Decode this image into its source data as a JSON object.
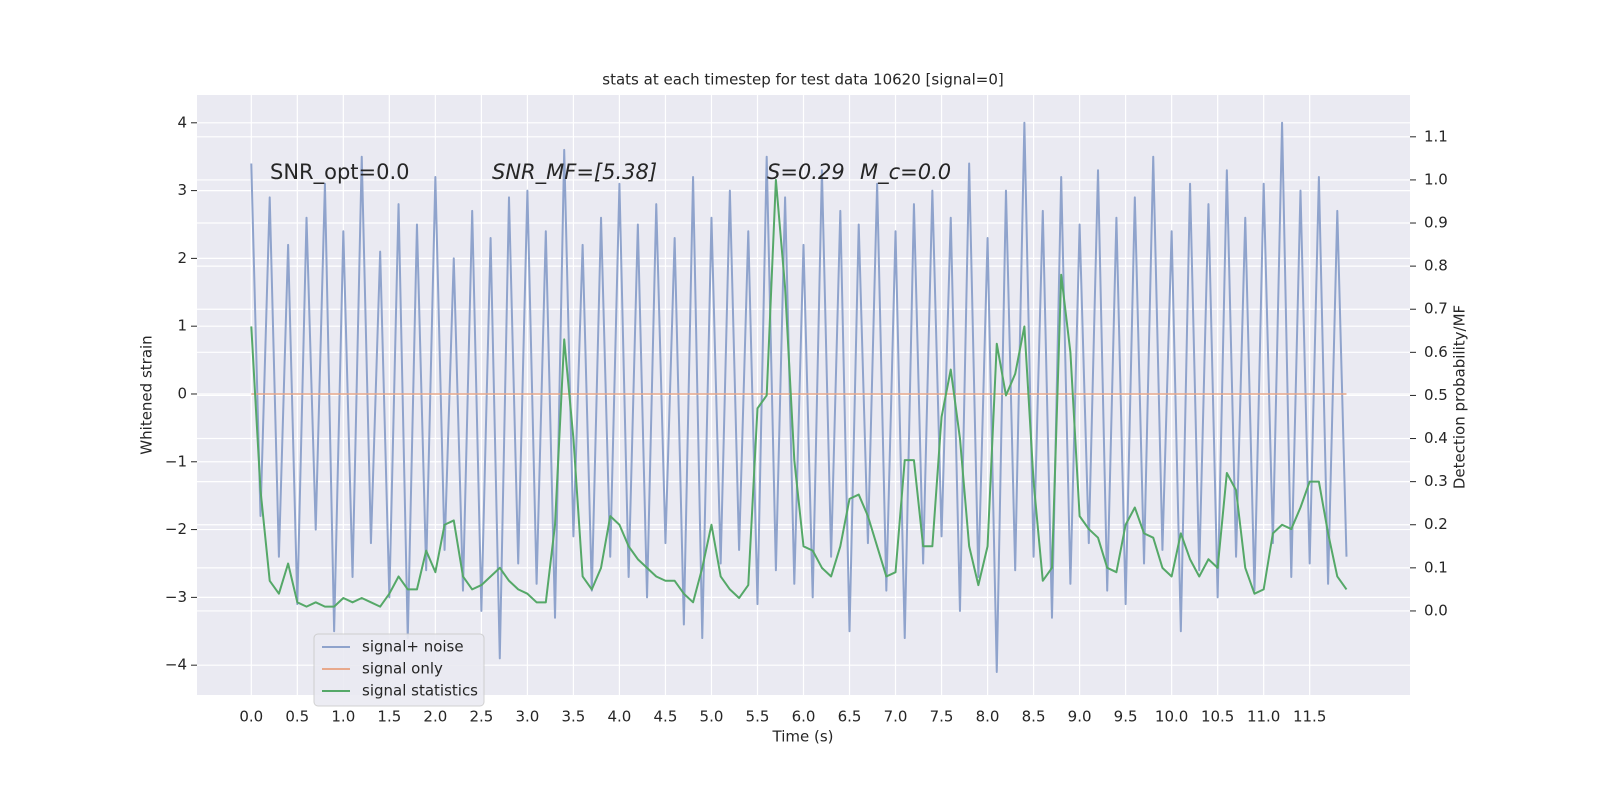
{
  "chart_data": {
    "type": "line",
    "title": "stats at each timestep for test data 10620 [signal=0]",
    "xlabel": "Time (s)",
    "ylabel": "Whitened strain",
    "y2label": "Detection probability/MF",
    "annotations": [
      "SNR_opt=0.0",
      "SNR_MF=[5.38]",
      "S=0.29",
      "M_c=0.0"
    ],
    "background": "#eaeaf2",
    "grid": true,
    "legend": "lower left",
    "xlim": [
      -0.59,
      12.59
    ],
    "ylim": [
      -4.44,
      4.41
    ],
    "y2lim": [
      -0.195,
      1.197
    ],
    "xticks": [
      {
        "value": 0,
        "label": "0.0"
      },
      0.5,
      {
        "value": 1,
        "label": "1.0"
      },
      1.5,
      {
        "value": 2,
        "label": "2.0"
      },
      2.5,
      {
        "value": 3,
        "label": "3.0"
      },
      3.5,
      {
        "value": 4,
        "label": "4.0"
      },
      4.5,
      {
        "value": 5,
        "label": "5.0"
      },
      5.5,
      {
        "value": 6,
        "label": "6.0"
      },
      6.5,
      {
        "value": 7,
        "label": "7.0"
      },
      7.5,
      {
        "value": 8,
        "label": "8.0"
      },
      8.5,
      {
        "value": 9,
        "label": "9.0"
      },
      9.5,
      {
        "value": 10,
        "label": "10.0"
      },
      10.5,
      {
        "value": 11,
        "label": "11.0"
      },
      11.5
    ],
    "yticks": [
      {
        "value": -4,
        "label": "−4"
      },
      {
        "value": -3,
        "label": "−3"
      },
      {
        "value": -2,
        "label": "−2"
      },
      {
        "value": -1,
        "label": "−1"
      },
      0,
      1,
      2,
      3,
      4
    ],
    "y2ticks": [
      {
        "value": 0,
        "label": "0.0"
      },
      0.1,
      0.2,
      0.3,
      0.4,
      0.5,
      0.6,
      0.7,
      0.8,
      0.9,
      {
        "value": 1,
        "label": "1.0"
      },
      1.1
    ],
    "x": [
      0,
      0.1,
      0.2,
      0.3,
      0.4,
      0.5,
      0.6,
      0.7,
      0.8,
      0.9,
      1,
      1.1,
      1.2,
      1.3,
      1.4,
      1.5,
      1.6,
      1.7,
      1.8,
      1.9,
      2,
      2.1,
      2.2,
      2.3,
      2.4,
      2.5,
      2.6,
      2.7,
      2.8,
      2.9,
      3,
      3.1,
      3.2,
      3.3,
      3.4,
      3.5,
      3.6,
      3.7,
      3.8,
      3.9,
      4,
      4.1,
      4.2,
      4.3,
      4.4,
      4.5,
      4.6,
      4.7,
      4.8,
      4.9,
      5,
      5.1,
      5.2,
      5.3,
      5.4,
      5.5,
      5.6,
      5.7,
      5.8,
      5.9,
      6,
      6.1,
      6.2,
      6.3,
      6.4,
      6.5,
      6.6,
      6.7,
      6.8,
      6.9,
      7,
      7.1,
      7.2,
      7.3,
      7.4,
      7.5,
      7.6,
      7.7,
      7.8,
      7.9,
      8,
      8.1,
      8.2,
      8.3,
      8.4,
      8.5,
      8.6,
      8.7,
      8.8,
      8.9,
      9,
      9.1,
      9.2,
      9.3,
      9.4,
      9.5,
      9.6,
      9.7,
      9.8,
      9.9,
      10,
      10.1,
      10.2,
      10.3,
      10.4,
      10.5,
      10.6,
      10.7,
      10.8,
      10.9,
      11,
      11.1,
      11.2,
      11.3,
      11.4,
      11.5,
      11.6,
      11.7,
      11.8,
      11.9
    ],
    "series": [
      {
        "name": "signal+ noise",
        "color": "#8fa3cc",
        "values": [
          3.4,
          -1.8,
          2.9,
          -2.4,
          2.2,
          -3.1,
          2.6,
          -2.0,
          3.1,
          -3.5,
          2.4,
          -2.7,
          3.5,
          -2.2,
          2.1,
          -3.0,
          2.8,
          -3.6,
          2.5,
          -2.6,
          3.2,
          -2.3,
          2.0,
          -2.9,
          2.7,
          -3.2,
          2.3,
          -3.9,
          2.9,
          -2.5,
          3.0,
          -2.8,
          2.4,
          -3.3,
          3.6,
          -2.1,
          2.2,
          -2.9,
          2.6,
          -2.4,
          3.1,
          -2.7,
          2.5,
          -3.0,
          2.8,
          -2.2,
          2.3,
          -3.4,
          3.2,
          -3.6,
          2.6,
          -2.5,
          3.0,
          -2.3,
          2.4,
          -3.1,
          3.5,
          -2.6,
          2.9,
          -2.8,
          2.2,
          -3.0,
          3.3,
          -2.4,
          2.7,
          -3.5,
          2.5,
          -2.2,
          3.1,
          -2.9,
          2.4,
          -3.6,
          2.8,
          -2.5,
          3.0,
          -2.1,
          2.6,
          -3.2,
          3.4,
          -2.7,
          2.3,
          -4.1,
          3.0,
          -2.6,
          4.0,
          -2.4,
          2.7,
          -3.3,
          3.2,
          -2.8,
          2.5,
          -2.2,
          3.3,
          -2.9,
          2.6,
          -3.1,
          2.9,
          -2.5,
          3.5,
          -2.3,
          2.4,
          -3.5,
          3.1,
          -2.6,
          2.8,
          -3.0,
          3.3,
          -2.4,
          2.6,
          -2.9,
          3.1,
          -2.2,
          4.0,
          -2.7,
          3.0,
          -2.5,
          3.2,
          -2.8,
          2.7,
          -2.4
        ]
      },
      {
        "name": "signal only",
        "color": "#e8a98c",
        "values": [
          0,
          0,
          0,
          0,
          0,
          0,
          0,
          0,
          0,
          0,
          0,
          0,
          0,
          0,
          0,
          0,
          0,
          0,
          0,
          0,
          0,
          0,
          0,
          0,
          0,
          0,
          0,
          0,
          0,
          0,
          0,
          0,
          0,
          0,
          0,
          0,
          0,
          0,
          0,
          0,
          0,
          0,
          0,
          0,
          0,
          0,
          0,
          0,
          0,
          0,
          0,
          0,
          0,
          0,
          0,
          0,
          0,
          0,
          0,
          0,
          0,
          0,
          0,
          0,
          0,
          0,
          0,
          0,
          0,
          0,
          0,
          0,
          0,
          0,
          0,
          0,
          0,
          0,
          0,
          0,
          0,
          0,
          0,
          0,
          0,
          0,
          0,
          0,
          0,
          0,
          0,
          0,
          0,
          0,
          0,
          0,
          0,
          0,
          0,
          0,
          0,
          0,
          0,
          0,
          0,
          0,
          0,
          0,
          0,
          0,
          0,
          0,
          0,
          0,
          0,
          0,
          0,
          0,
          0,
          0
        ]
      },
      {
        "name": "signal statistics",
        "color": "#55a868",
        "axis": "y2",
        "values": [
          0.66,
          0.28,
          0.07,
          0.04,
          0.11,
          0.02,
          0.01,
          0.02,
          0.01,
          0.01,
          0.03,
          0.02,
          0.03,
          0.02,
          0.01,
          0.04,
          0.08,
          0.05,
          0.05,
          0.14,
          0.09,
          0.2,
          0.21,
          0.08,
          0.05,
          0.06,
          0.08,
          0.1,
          0.07,
          0.05,
          0.04,
          0.02,
          0.02,
          0.2,
          0.63,
          0.4,
          0.08,
          0.05,
          0.1,
          0.22,
          0.2,
          0.15,
          0.12,
          0.1,
          0.08,
          0.07,
          0.07,
          0.04,
          0.02,
          0.1,
          0.2,
          0.08,
          0.05,
          0.03,
          0.06,
          0.47,
          0.5,
          1.0,
          0.75,
          0.35,
          0.15,
          0.14,
          0.1,
          0.08,
          0.15,
          0.26,
          0.27,
          0.22,
          0.15,
          0.08,
          0.09,
          0.35,
          0.35,
          0.15,
          0.15,
          0.45,
          0.56,
          0.4,
          0.15,
          0.06,
          0.15,
          0.62,
          0.5,
          0.55,
          0.66,
          0.3,
          0.07,
          0.1,
          0.78,
          0.6,
          0.22,
          0.19,
          0.17,
          0.1,
          0.09,
          0.2,
          0.24,
          0.18,
          0.17,
          0.1,
          0.08,
          0.18,
          0.12,
          0.08,
          0.12,
          0.1,
          0.32,
          0.28,
          0.1,
          0.04,
          0.05,
          0.18,
          0.2,
          0.19,
          0.24,
          0.3,
          0.3,
          0.18,
          0.08,
          0.05
        ]
      }
    ]
  }
}
